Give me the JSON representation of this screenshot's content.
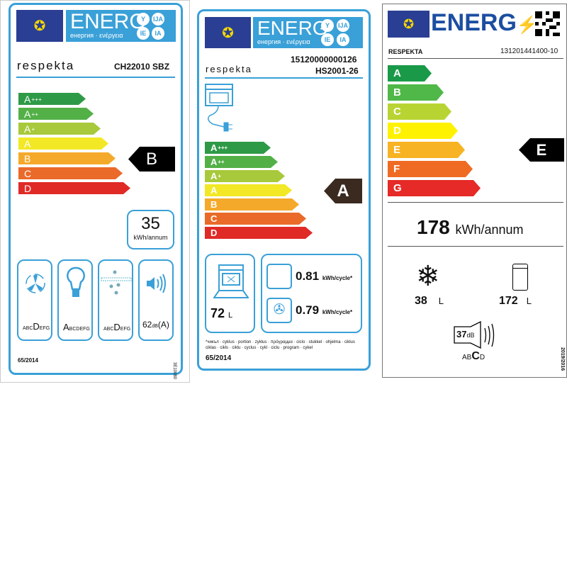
{
  "label1": {
    "energ": "ENERG",
    "subtitle": "енергия · ενέργεια",
    "circles": [
      "Y",
      "IJA",
      "IE",
      "IA"
    ],
    "brand": "respekta",
    "model": "CH22010 SBZ",
    "classes": [
      {
        "letter": "A",
        "sup": "+++",
        "color": "#2e9a47"
      },
      {
        "letter": "A",
        "sup": "++",
        "color": "#52b047"
      },
      {
        "letter": "A",
        "sup": "+",
        "color": "#a7c93b"
      },
      {
        "letter": "A",
        "sup": "",
        "color": "#f2e826"
      },
      {
        "letter": "B",
        "sup": "",
        "color": "#f5a92a"
      },
      {
        "letter": "C",
        "sup": "",
        "color": "#ea6a29"
      },
      {
        "letter": "D",
        "sup": "",
        "color": "#e02a26"
      }
    ],
    "rating": "B",
    "consumption": "35",
    "consumption_unit": "kWh/annum",
    "fan_class": {
      "pre": "ABC",
      "main": "D",
      "post": "EFG"
    },
    "light_class": {
      "pre": "",
      "main": "A",
      "post": "BCDEFG"
    },
    "grease_class": {
      "pre": "ABC",
      "main": "D",
      "post": "EFG"
    },
    "noise": "62",
    "noise_unit": "dB",
    "noise_suffix": "(A)",
    "regulation": "65/2014",
    "side_code": "3E10080"
  },
  "label2": {
    "energ": "ENERG",
    "subtitle": "енергия · ενέργεια",
    "circles": [
      "Y",
      "IJA",
      "IE",
      "IA"
    ],
    "ean": "15120000000126",
    "brand": "respekta",
    "model": "HS2001-26",
    "classes": [
      {
        "letter": "A",
        "sup": "+++",
        "color": "#2e9a47"
      },
      {
        "letter": "A",
        "sup": "++",
        "color": "#52b047"
      },
      {
        "letter": "A",
        "sup": "+",
        "color": "#a7c93b"
      },
      {
        "letter": "A",
        "sup": "",
        "color": "#f2e826"
      },
      {
        "letter": "B",
        "sup": "",
        "color": "#f5a92a"
      },
      {
        "letter": "C",
        "sup": "",
        "color": "#ea6a29"
      },
      {
        "letter": "D",
        "sup": "",
        "color": "#e02a26"
      }
    ],
    "rating": "A",
    "volume": "72",
    "volume_unit": "L",
    "conventional": "0.81",
    "fan_forced": "0.79",
    "cycle_unit": "kWh/cycle*",
    "footnote": "*чикъл · cyklus · portion · zyklus · πρόγραμμα · ciclo · stukkel · ohjelma · ciklus ciklas · cikls · ciklu · cyclus · cykl · ciclu · program · cykel",
    "regulation": "65/2014"
  },
  "label3": {
    "energ": "ENERG",
    "brand": "RESPEKTA",
    "model": "131201441400-10",
    "classes": [
      {
        "letter": "A",
        "color": "#1a9a48"
      },
      {
        "letter": "B",
        "color": "#4fb848"
      },
      {
        "letter": "C",
        "color": "#b8d433"
      },
      {
        "letter": "D",
        "color": "#fff200"
      },
      {
        "letter": "E",
        "color": "#f7b323"
      },
      {
        "letter": "F",
        "color": "#ef6b23"
      },
      {
        "letter": "G",
        "color": "#e52a27"
      }
    ],
    "rating": "E",
    "consumption": "178",
    "consumption_unit": "kWh/annum",
    "freezer": "38",
    "fridge": "172",
    "vol_unit": "L",
    "noise": "37",
    "noise_unit": "dB",
    "noise_class": {
      "pre": "AB",
      "main": "C",
      "post": "D"
    },
    "regulation": "2019/2016"
  }
}
